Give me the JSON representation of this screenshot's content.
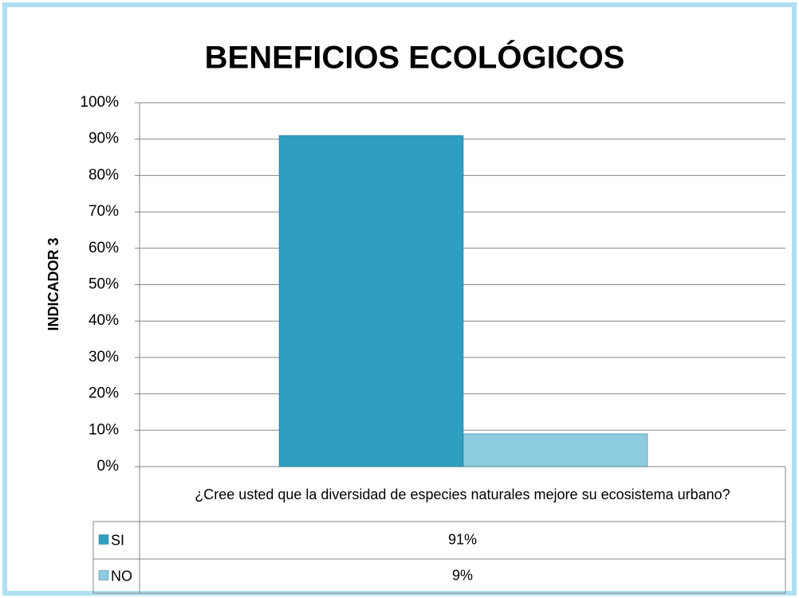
{
  "chart_data": {
    "type": "bar",
    "title": "BENEFICIOS ECOLÓGICOS",
    "ylabel": "INDICADOR  3",
    "categories": [
      "¿Cree usted que la diversidad de especies naturales  mejore su ecosistema urbano?"
    ],
    "series": [
      {
        "name": "SI",
        "color": "#2f9fc0",
        "values": [
          91
        ],
        "value_labels": [
          "91%"
        ]
      },
      {
        "name": "NO",
        "color": "#8ccbe0",
        "values": [
          9
        ],
        "value_labels": [
          "9%"
        ]
      }
    ],
    "ylim": [
      0,
      100
    ],
    "yticks": [
      {
        "value": 0,
        "label": "0%"
      },
      {
        "value": 10,
        "label": "10%"
      },
      {
        "value": 20,
        "label": "20%"
      },
      {
        "value": 30,
        "label": "30%"
      },
      {
        "value": 40,
        "label": "40%"
      },
      {
        "value": 50,
        "label": "50%"
      },
      {
        "value": 60,
        "label": "60%"
      },
      {
        "value": 70,
        "label": "70%"
      },
      {
        "value": 80,
        "label": "80%"
      },
      {
        "value": 90,
        "label": "90%"
      },
      {
        "value": 100,
        "label": "100%"
      }
    ],
    "grid": true
  }
}
